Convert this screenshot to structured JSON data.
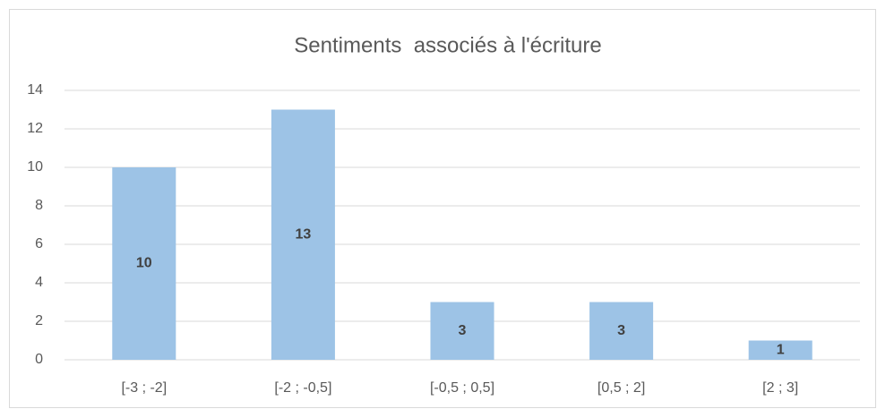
{
  "chart_data": {
    "type": "bar",
    "title": "Sentiments  associés à l'écriture",
    "categories": [
      "[-3 ; -2]",
      "[-2 ; -0,5]",
      "[-0,5 ; 0,5]",
      "[0,5 ; 2]",
      "[2 ; 3]"
    ],
    "values": [
      10,
      13,
      3,
      3,
      1
    ],
    "color": "#9dc3e6",
    "ylim": [
      0,
      14
    ],
    "yticks": [
      0,
      2,
      4,
      6,
      8,
      10,
      12,
      14
    ],
    "grid": true,
    "data_labels": true
  }
}
